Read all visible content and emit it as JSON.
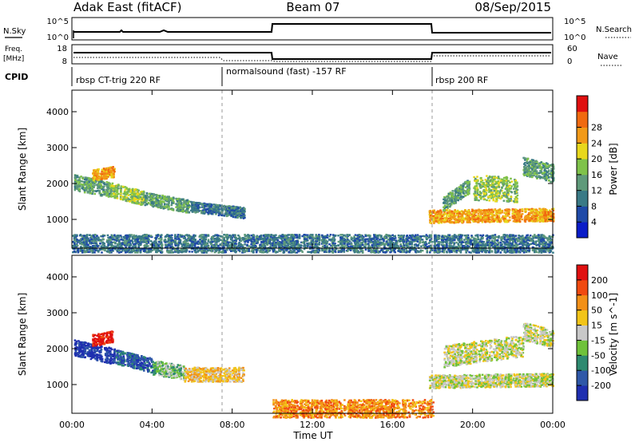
{
  "header": {
    "title_left": "Adak East (fitACF)",
    "title_center": "Beam 07",
    "title_right": "08/Sep/2015"
  },
  "top_panel": {
    "left_label": "N.Sky",
    "right_label": "N.Search",
    "left_ticks": [
      "10^5",
      "10^0"
    ],
    "right_ticks": [
      "10^5",
      "10^0"
    ]
  },
  "freq_panel": {
    "left_label_1": "Freq.",
    "left_label_2": "[MHz]",
    "left_ticks": [
      "18",
      "8"
    ],
    "right_ticks": [
      "60",
      "0"
    ],
    "right_label": "Nave"
  },
  "cpid": {
    "label": "CPID",
    "segments": [
      {
        "start_h": 0,
        "end_h": 7.5,
        "text": "rbsp CT-trig 220 RF"
      },
      {
        "start_h": 7.5,
        "end_h": 18,
        "text": "normalsound (fast) -157 RF"
      },
      {
        "start_h": 18,
        "end_h": 24,
        "text": "rbsp 200 RF"
      }
    ]
  },
  "power_colorbar": {
    "label": "Power [dB]",
    "ticks": [
      "4",
      "8",
      "12",
      "16",
      "20",
      "24",
      "28"
    ],
    "colors": [
      "#0a1cc8",
      "#1f4aa8",
      "#3a7a86",
      "#5f9a7a",
      "#7fc24a",
      "#e8d81c",
      "#f29a18",
      "#f06a10",
      "#e01010"
    ]
  },
  "velocity_colorbar": {
    "label": "Velocity [m s^-1]",
    "ticks": [
      "200",
      "100",
      "50",
      "15",
      "-15",
      "-50",
      "-100",
      "-200"
    ],
    "colors": [
      "#1f2fb0",
      "#2f58a8",
      "#2e8a70",
      "#6fc23a",
      "#c8c8c8",
      "#f2c418",
      "#f29018",
      "#f04a10",
      "#e01010"
    ]
  },
  "chart_data": [
    {
      "type": "heatmap",
      "name": "power",
      "xlabel": "",
      "ylabel": "Slant Range [km]",
      "xlim": [
        0,
        24
      ],
      "ylim": [
        200,
        4600
      ],
      "x_ticks": [
        "00:00",
        "04:00",
        "08:00",
        "12:00",
        "16:00",
        "20:00",
        "00:00"
      ],
      "y_ticks": [
        1000,
        2000,
        3000,
        4000
      ],
      "bands": [
        {
          "h0": 0.1,
          "h1": 1.9,
          "r0": 2050,
          "r1": 1850,
          "w": 220,
          "level": 3
        },
        {
          "h0": 1.9,
          "h1": 3.6,
          "r0": 1850,
          "r1": 1600,
          "w": 200,
          "level": 4
        },
        {
          "h0": 3.6,
          "h1": 5.8,
          "r0": 1600,
          "r1": 1380,
          "w": 180,
          "level": 3
        },
        {
          "h0": 5.8,
          "h1": 8.6,
          "r0": 1380,
          "r1": 1200,
          "w": 150,
          "level": 2
        },
        {
          "h0": 1.0,
          "h1": 2.1,
          "r0": 2250,
          "r1": 2350,
          "w": 150,
          "level": 6
        },
        {
          "h0": 17.8,
          "h1": 24.0,
          "r0": 1100,
          "r1": 1150,
          "w": 180,
          "level": 6
        },
        {
          "h0": 20.0,
          "h1": 22.2,
          "r0": 1900,
          "r1": 1850,
          "w": 350,
          "level": 4
        },
        {
          "h0": 18.5,
          "h1": 19.8,
          "r0": 1450,
          "r1": 1950,
          "w": 200,
          "level": 3
        },
        {
          "h0": 22.5,
          "h1": 24.0,
          "r0": 2500,
          "r1": 2300,
          "w": 250,
          "level": 3
        },
        {
          "h0": 0.0,
          "h1": 24.0,
          "r0": 350,
          "r1": 350,
          "w": 250,
          "level": 2
        }
      ]
    },
    {
      "type": "heatmap",
      "name": "velocity",
      "xlabel": "Time UT",
      "ylabel": "Slant Range [km]",
      "xlim": [
        0,
        24
      ],
      "ylim": [
        200,
        4600
      ],
      "x_ticks": [
        "00:00",
        "04:00",
        "08:00",
        "12:00",
        "16:00",
        "20:00",
        "00:00"
      ],
      "y_ticks": [
        1000,
        2000,
        3000,
        4000
      ],
      "bands": [
        {
          "h0": 0.1,
          "h1": 2.1,
          "r0": 2050,
          "r1": 1800,
          "w": 220,
          "level": 0
        },
        {
          "h0": 2.1,
          "h1": 4.0,
          "r0": 1800,
          "r1": 1550,
          "w": 200,
          "level": 1
        },
        {
          "h0": 4.0,
          "h1": 5.6,
          "r0": 1500,
          "r1": 1350,
          "w": 200,
          "level": 3
        },
        {
          "h0": 5.6,
          "h1": 8.6,
          "r0": 1300,
          "r1": 1300,
          "w": 200,
          "level": 5
        },
        {
          "h0": 1.0,
          "h1": 2.0,
          "r0": 2250,
          "r1": 2350,
          "w": 160,
          "level": 8
        },
        {
          "h0": 17.8,
          "h1": 24.0,
          "r0": 1100,
          "r1": 1150,
          "w": 180,
          "level": 4
        },
        {
          "h0": 18.5,
          "h1": 22.5,
          "r0": 1800,
          "r1": 2100,
          "w": 300,
          "level": 4
        },
        {
          "h0": 22.5,
          "h1": 24.0,
          "r0": 2500,
          "r1": 2300,
          "w": 250,
          "level": 4
        },
        {
          "h0": 10.0,
          "h1": 18.0,
          "r0": 350,
          "r1": 350,
          "w": 250,
          "level": 6
        }
      ]
    }
  ]
}
